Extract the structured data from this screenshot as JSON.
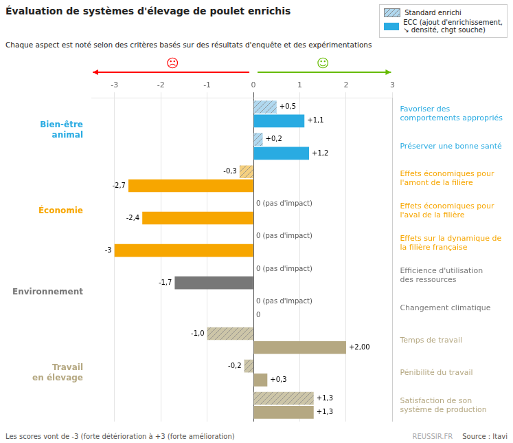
{
  "chart_data": {
    "type": "bar",
    "orientation": "horizontal",
    "title": "Évaluation de systèmes d'élevage de poulet enrichis",
    "subtitle": "Chaque aspect est noté selon des critères basés sur des résultats d'enquête et des expérimentations",
    "categories": [
      "Favoriser des comportements appropriés",
      "Préserver une bonne santé",
      "Effets économiques pour l'amont de la filière",
      "Effets économiques pour l'aval de la filière",
      "Effets sur la dynamique de la filière française",
      "Efficience d'utilisation des ressources",
      "Changement climatique",
      "Temps de travail",
      "Pénibilité du travail",
      "Satisfaction de son système de production"
    ],
    "groups": [
      "Bien-être\nanimal",
      "Bien-être\nanimal",
      "Économie",
      "Économie",
      "Économie",
      "Environnement",
      "Environnement",
      "Travail\nen élevage",
      "Travail\nen élevage",
      "Travail\nen élevage"
    ],
    "series": [
      {
        "name": "Standard enrichi",
        "colors": [
          "#b0d8ef",
          "#b0d8ef",
          "#f5d080",
          "#f5d080",
          "#f5d080",
          "#cccccc",
          "#cccccc",
          "#ccc5a8",
          "#ccc5a8",
          "#ccc5a8"
        ],
        "values": [
          0.5,
          0.2,
          -0.3,
          0.0,
          0.0,
          0.0,
          0.0,
          -1.0,
          -0.2,
          1.3
        ],
        "value_labels": [
          "+0,5",
          "+0,2",
          "-0,3",
          "0 (pas d'impact)",
          "0 (pas d'impact)",
          "0 (pas d'impact)",
          "0 (pas d'impact)",
          "-1,0",
          "-0,2",
          "+1,3"
        ]
      },
      {
        "name": "ECC (ajout d'enrichissement,\n↘ densité, chgt souche)",
        "colors": [
          "#29abe2",
          "#29abe2",
          "#f7a600",
          "#f7a600",
          "#f7a600",
          "#777777",
          "#777777",
          "#b5a882",
          "#b5a882",
          "#b5a882"
        ],
        "values": [
          1.1,
          1.2,
          -2.7,
          -2.4,
          -3.0,
          -1.7,
          0.0,
          2.0,
          0.3,
          1.3
        ],
        "value_labels": [
          "+1,1",
          "+1,2",
          "-2,7",
          "-2,4",
          "-3",
          "-1,7",
          "0",
          "+2,00",
          "+0,3",
          "+1,3"
        ]
      }
    ],
    "xlim": [
      -3.5,
      3.0
    ],
    "xticks": [
      -3,
      -2,
      -1,
      0,
      1,
      2,
      3
    ],
    "grid": true,
    "legend": "top",
    "data_labels": true,
    "annotations": [
      {
        "text": "☹",
        "color": "red"
      },
      {
        "text": "☺",
        "color": "#66bb00"
      },
      {
        "text": "REUSSIR.FR"
      }
    ],
    "footer": "Les scores vont de -3 (forte détérioration à +3 (forte amélioration)",
    "source": "Source : Itavi"
  }
}
